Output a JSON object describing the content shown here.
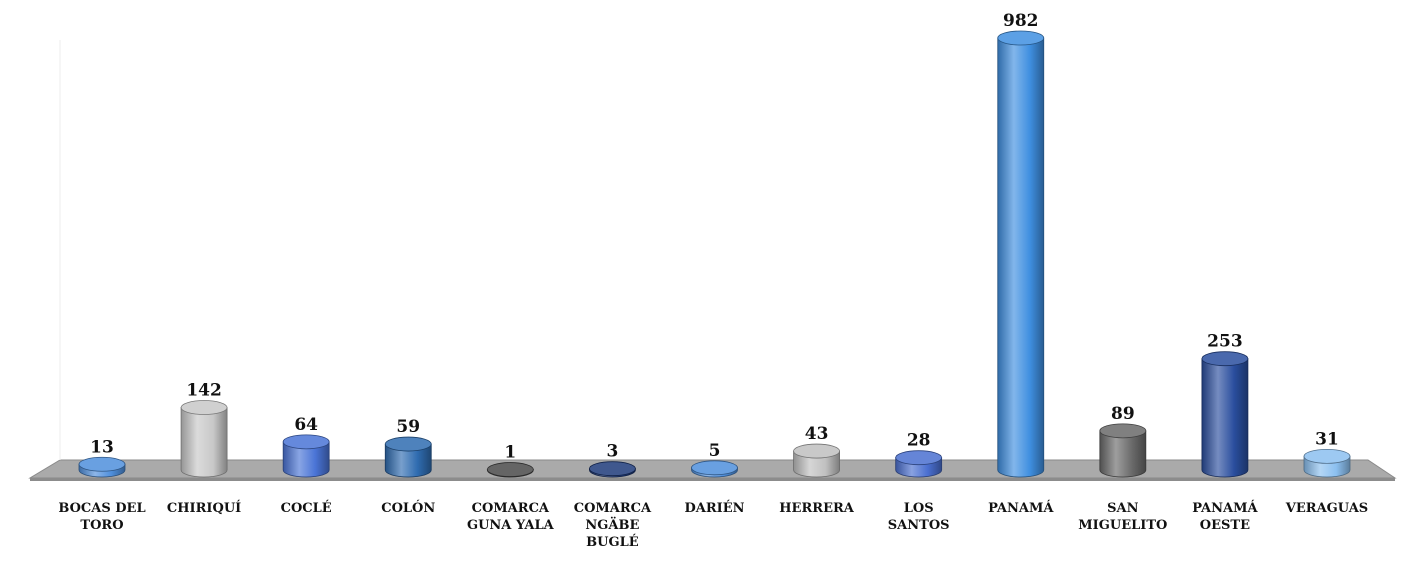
{
  "chart_data": {
    "type": "bar",
    "style": "3d-cylinder",
    "title": "",
    "xlabel": "",
    "ylabel": "",
    "grid": false,
    "legend": "none",
    "ylim": [
      0,
      1000
    ],
    "categories": [
      "BOCAS DEL TORO",
      "CHIRIQUÍ",
      "COCLÉ",
      "COLÓN",
      "COMARCA GUNA YALA",
      "COMARCA NGÄBE BUGLÉ",
      "DARIÉN",
      "HERRERA",
      "LOS SANTOS",
      "PANAMÁ",
      "SAN MIGUELITO",
      "PANAMÁ OESTE",
      "VERAGUAS"
    ],
    "category_lines": [
      [
        "BOCAS DEL",
        "TORO"
      ],
      [
        "CHIRIQUÍ"
      ],
      [
        "COCLÉ"
      ],
      [
        "COLÓN"
      ],
      [
        "COMARCA",
        "GUNA YALA"
      ],
      [
        "COMARCA",
        "NGÄBE",
        "BUGLÉ"
      ],
      [
        "DARIÉN"
      ],
      [
        "HERRERA"
      ],
      [
        "LOS",
        "SANTOS"
      ],
      [
        "PANAMÁ"
      ],
      [
        "SAN",
        "MIGUELITO"
      ],
      [
        "PANAMÁ",
        "OESTE"
      ],
      [
        "VERAGUAS"
      ]
    ],
    "values": [
      13,
      142,
      64,
      59,
      1,
      3,
      5,
      43,
      28,
      982,
      89,
      253,
      31
    ],
    "value_labels": [
      "13",
      "142",
      "64",
      "59",
      "1",
      "3",
      "5",
      "43",
      "28",
      "982",
      "89",
      "253",
      "31"
    ],
    "colors": [
      "#4f8fdc",
      "#c8c8c8",
      "#4a74d6",
      "#2f6cb0",
      "#4a4a4a",
      "#1e3a7a",
      "#4f8fdc",
      "#c0c0c0",
      "#4a6fd0",
      "#3f8fe0",
      "#6a6a6a",
      "#2a4e9e",
      "#8cc0f0"
    ]
  }
}
